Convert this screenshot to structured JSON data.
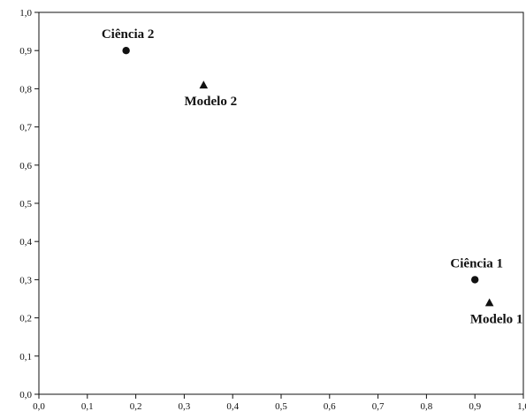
{
  "chart_data": {
    "type": "scatter",
    "xlim": [
      0.0,
      1.0
    ],
    "ylim": [
      0.0,
      1.0
    ],
    "grid": false,
    "x_ticks": [
      {
        "value": 0.0,
        "label": "0,0"
      },
      {
        "value": 0.1,
        "label": "0,1"
      },
      {
        "value": 0.2,
        "label": "0,2"
      },
      {
        "value": 0.3,
        "label": "0,3"
      },
      {
        "value": 0.4,
        "label": "0,4"
      },
      {
        "value": 0.5,
        "label": "0,5"
      },
      {
        "value": 0.6,
        "label": "0,6"
      },
      {
        "value": 0.7,
        "label": "0,7"
      },
      {
        "value": 0.8,
        "label": "0,8"
      },
      {
        "value": 0.9,
        "label": "0,9"
      },
      {
        "value": 1.0,
        "label": "1,0"
      }
    ],
    "y_ticks": [
      {
        "value": 0.0,
        "label": "0,0"
      },
      {
        "value": 0.1,
        "label": "0,1"
      },
      {
        "value": 0.2,
        "label": "0,2"
      },
      {
        "value": 0.3,
        "label": "0,3"
      },
      {
        "value": 0.4,
        "label": "0,4"
      },
      {
        "value": 0.5,
        "label": "0,5"
      },
      {
        "value": 0.6,
        "label": "0,6"
      },
      {
        "value": 0.7,
        "label": "0,7"
      },
      {
        "value": 0.8,
        "label": "0,8"
      },
      {
        "value": 0.9,
        "label": "0,9"
      },
      {
        "value": 1.0,
        "label": "1,0"
      }
    ],
    "points": [
      {
        "label": "Ciência 2",
        "x": 0.18,
        "y": 0.9,
        "marker": "circle"
      },
      {
        "label": "Modelo 2",
        "x": 0.34,
        "y": 0.81,
        "marker": "triangle"
      },
      {
        "label": "Ciência 1",
        "x": 0.9,
        "y": 0.3,
        "marker": "circle"
      },
      {
        "label": "Modelo 1",
        "x": 0.93,
        "y": 0.24,
        "marker": "triangle"
      }
    ],
    "colors": {
      "background": "#ffffff",
      "axis": "#111111",
      "marker": "#111111",
      "text": "#111111"
    }
  }
}
